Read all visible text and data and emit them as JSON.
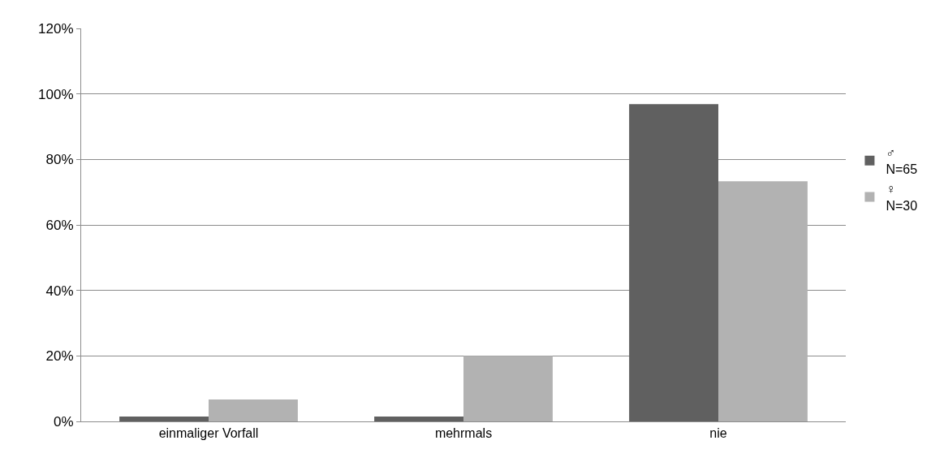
{
  "chart_data": {
    "type": "bar",
    "categories": [
      "einmaliger Vorfall",
      "mehrmals",
      "nie"
    ],
    "series": [
      {
        "name": "♂\nN=65",
        "color": "#606060",
        "values": [
          1.5,
          1.5,
          96.9
        ]
      },
      {
        "name": "♀\nN=30",
        "color": "#b2b2b2",
        "values": [
          6.7,
          20,
          73.3
        ]
      }
    ],
    "ylim": [
      0,
      120
    ],
    "yticks": [
      {
        "value": 0,
        "label": "0%"
      },
      {
        "value": 20,
        "label": "20%"
      },
      {
        "value": 40,
        "label": "40%"
      },
      {
        "value": 60,
        "label": "60%"
      },
      {
        "value": 80,
        "label": "80%"
      },
      {
        "value": 100,
        "label": "100%"
      },
      {
        "value": 120,
        "label": "120%"
      }
    ],
    "grid": "y",
    "legend": "right"
  }
}
